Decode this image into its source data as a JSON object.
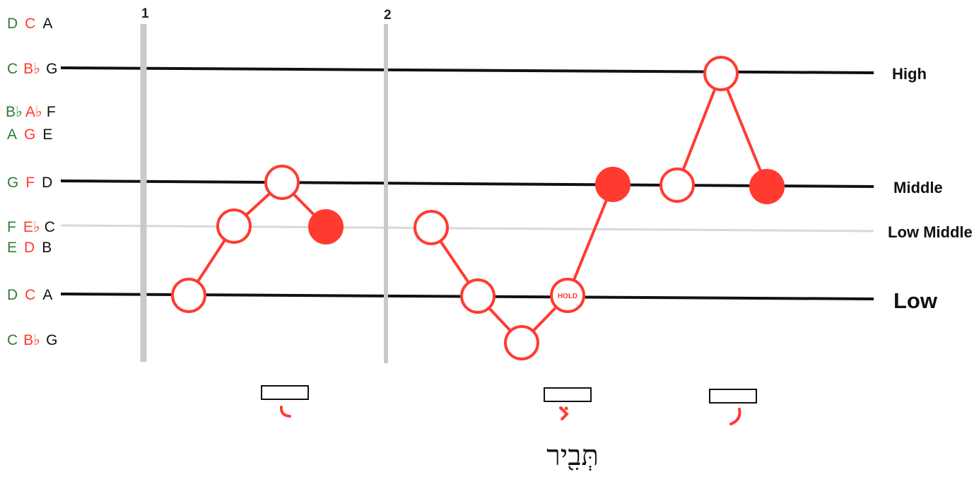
{
  "colors": {
    "green": "#2e7d32",
    "red": "#ff3b30",
    "black": "#111111",
    "grid_gray": "#c9c9c9",
    "line_gray": "#d8d8d8"
  },
  "note_scale": [
    {
      "green": "D",
      "red": "C",
      "black": "A"
    },
    {
      "green": "C",
      "red": "B♭",
      "black": "G"
    },
    {
      "green": "B♭",
      "red": "A♭",
      "black": "F"
    },
    {
      "green": "A",
      "red": "G",
      "black": "E"
    },
    {
      "green": "G",
      "red": "F",
      "black": "D"
    },
    {
      "green": "F",
      "red": "E♭",
      "black": "C"
    },
    {
      "green": "E",
      "red": "D",
      "black": "B"
    },
    {
      "green": "D",
      "red": "C",
      "black": "A"
    },
    {
      "green": "C",
      "red": "B♭",
      "black": "G"
    }
  ],
  "levels": {
    "high": "High",
    "middle": "Middle",
    "low_middle": "Low Middle",
    "low": "Low"
  },
  "bar_numbers": [
    "1",
    "2"
  ],
  "hold_label": "HOLD",
  "hebrew_word": "תְּבִ֖יר",
  "tip_icons": [
    "tipcha-mark-icon",
    "tevir-mark-icon",
    "mercha-mark-icon"
  ]
}
